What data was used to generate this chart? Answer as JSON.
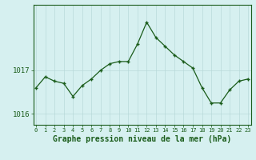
{
  "hours": [
    0,
    1,
    2,
    3,
    4,
    5,
    6,
    7,
    8,
    9,
    10,
    11,
    12,
    13,
    14,
    15,
    16,
    17,
    18,
    19,
    20,
    21,
    22,
    23
  ],
  "pressure": [
    1016.6,
    1016.85,
    1016.75,
    1016.7,
    1016.4,
    1016.65,
    1016.8,
    1017.0,
    1017.15,
    1017.2,
    1017.2,
    1017.6,
    1018.1,
    1017.75,
    1017.55,
    1017.35,
    1017.2,
    1017.05,
    1016.6,
    1016.25,
    1016.25,
    1016.55,
    1016.75,
    1016.8
  ],
  "line_color": "#1a5c1a",
  "marker": "+",
  "marker_size": 3,
  "bg_color": "#d6f0f0",
  "grid_color": "#b8dada",
  "title": "Graphe pression niveau de la mer (hPa)",
  "title_fontsize": 7,
  "yticks": [
    1016,
    1017
  ],
  "ylim": [
    1015.75,
    1018.5
  ],
  "xlim": [
    -0.3,
    23.3
  ]
}
